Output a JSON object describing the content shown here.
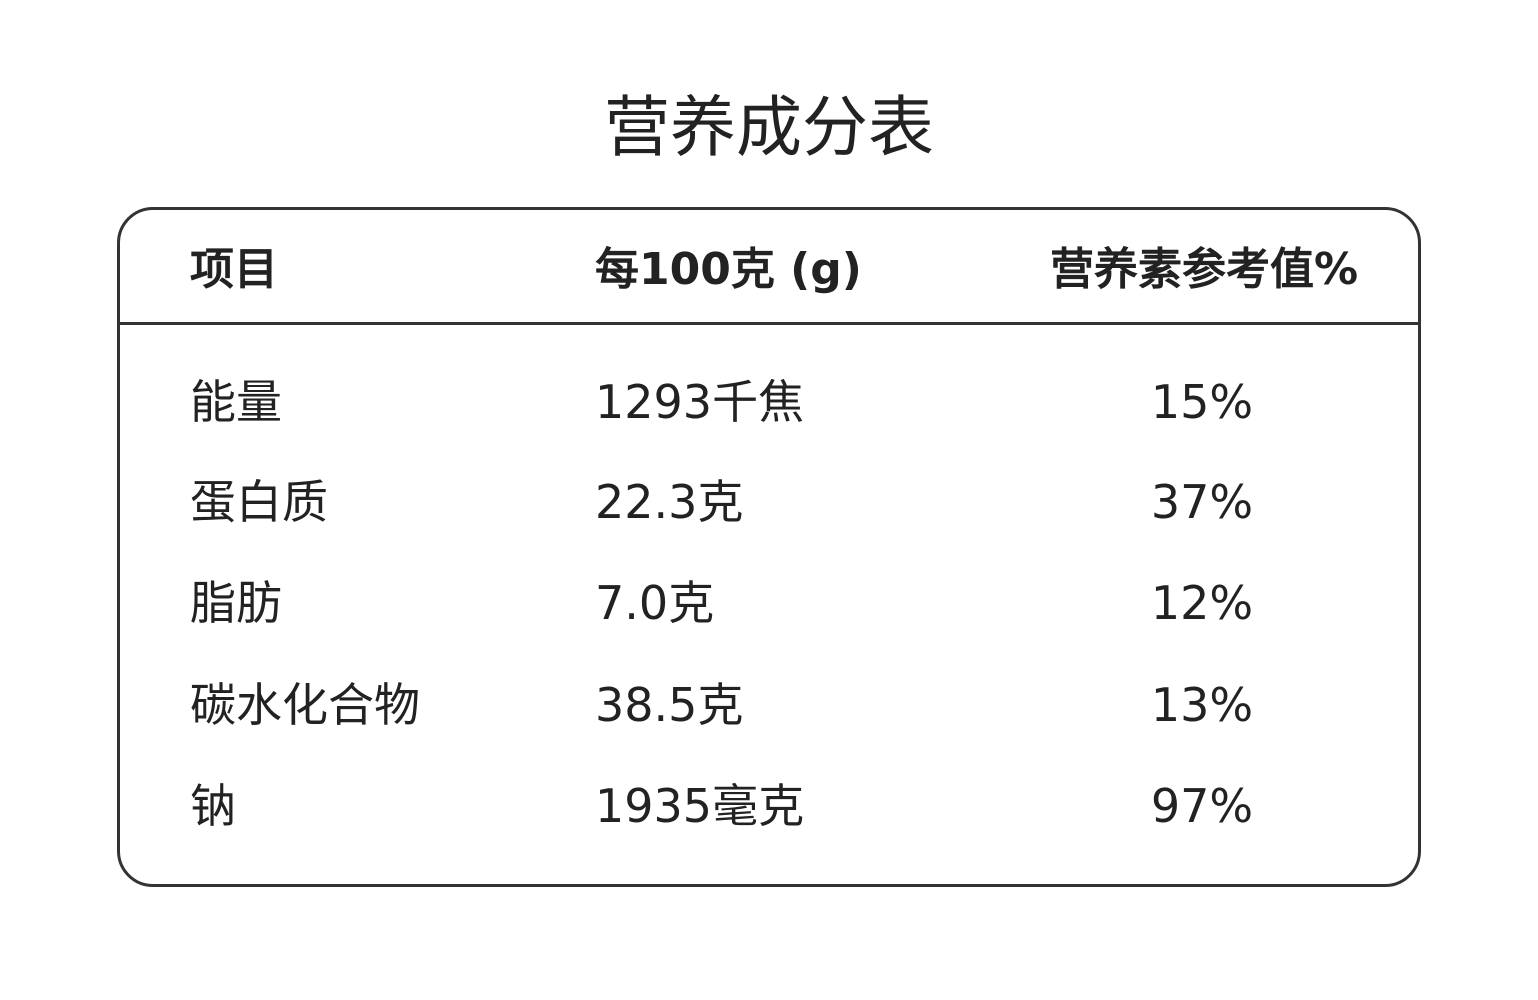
{
  "title": "营养成分表",
  "headers": [
    "项目",
    "每100克 (g)",
    "营养素参考值%"
  ],
  "rows": [
    [
      "能量",
      "1293千焦",
      "15%"
    ],
    [
      "蛋白质",
      "22.3克",
      "37%"
    ],
    [
      "脂肪",
      "7.0克",
      "12%"
    ],
    [
      "碳水化合物",
      "38.5克",
      "13%"
    ],
    [
      "钠",
      "1935毫克",
      "97%"
    ]
  ]
}
